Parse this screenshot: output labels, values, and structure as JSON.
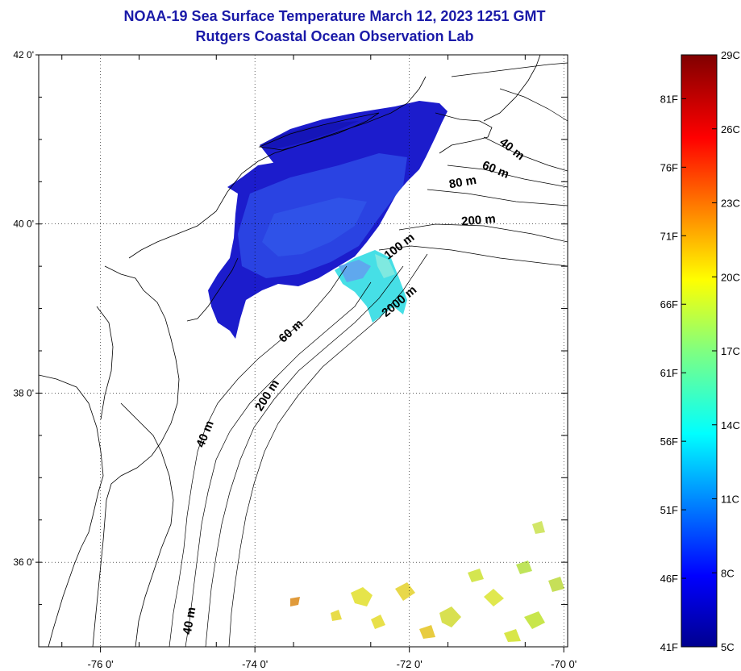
{
  "title": {
    "line1": "NOAA-19 Sea Surface Temperature March 12, 2023 1251 GMT",
    "line2": "Rutgers Coastal Ocean Observation Lab"
  },
  "map": {
    "lat_labels": [
      "42 0'",
      "40 0'",
      "38 0'",
      "36 0'"
    ],
    "lon_labels": [
      "-76 0'",
      "-74 0'",
      "-72 0'",
      "-70 0'"
    ],
    "lat_ticks": [
      42,
      40,
      38,
      36
    ],
    "lon_ticks": [
      -76,
      -74,
      -72,
      -70
    ],
    "extent": {
      "lon_min": -76.8,
      "lon_max": -69.95,
      "lat_min": 35.0,
      "lat_max": 42.0
    },
    "contour_labels": [
      {
        "text": "40 m",
        "lon": -70.7,
        "lat": 40.85,
        "rot": 38
      },
      {
        "text": "60 m",
        "lon": -70.9,
        "lat": 40.6,
        "rot": 22
      },
      {
        "text": "80 m",
        "lon": -71.3,
        "lat": 40.45,
        "rot": -10
      },
      {
        "text": "200 m",
        "lon": -71.1,
        "lat": 40.0,
        "rot": -5
      },
      {
        "text": "100 m",
        "lon": -72.1,
        "lat": 39.7,
        "rot": -38
      },
      {
        "text": "2000 m",
        "lon": -72.1,
        "lat": 39.05,
        "rot": -40
      },
      {
        "text": "60 m",
        "lon": -73.5,
        "lat": 38.7,
        "rot": -42
      },
      {
        "text": "200 m",
        "lon": -73.8,
        "lat": 37.95,
        "rot": -58
      },
      {
        "text": "40 m",
        "lon": -74.6,
        "lat": 37.5,
        "rot": -68
      },
      {
        "text": "40 m",
        "lon": -74.8,
        "lat": 35.3,
        "rot": -80
      }
    ],
    "sst_colors": {
      "cold": "#1a1acd",
      "mid": "#2b3fe0",
      "cyan": "#40e0e8",
      "warm": "#e8e040",
      "warmer": "#c8d040"
    }
  },
  "colorbar": {
    "c_labels": [
      "29C",
      "26C",
      "23C",
      "20C",
      "17C",
      "14C",
      "11C",
      "8C",
      "5C"
    ],
    "f_labels": [
      "81F",
      "76F",
      "71F",
      "66F",
      "61F",
      "56F",
      "51F",
      "46F",
      "41F"
    ],
    "c_min": 5,
    "c_max": 29,
    "f_values": [
      81,
      76,
      71,
      66,
      61,
      56,
      51,
      46,
      41
    ]
  }
}
